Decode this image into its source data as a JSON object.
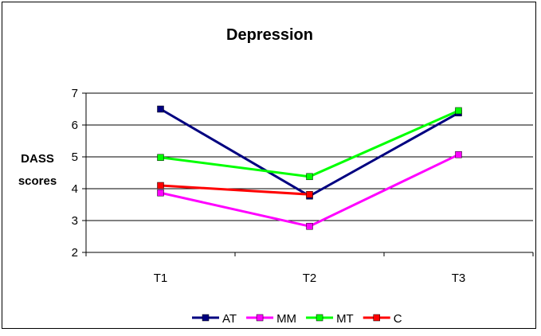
{
  "chart_data": {
    "type": "line",
    "title": "Depression",
    "ylabel_lines": [
      "DASS",
      "scores"
    ],
    "categories": [
      "T1",
      "T2",
      "T3"
    ],
    "ylim": [
      2,
      7
    ],
    "yticks": [
      2,
      3,
      4,
      5,
      6,
      7
    ],
    "grid": true,
    "legend": "bottom",
    "series": [
      {
        "name": "AT",
        "values": [
          6.5,
          3.77,
          6.38
        ],
        "color": "#000080"
      },
      {
        "name": "MM",
        "values": [
          3.87,
          2.82,
          5.07
        ],
        "color": "#FF00FF"
      },
      {
        "name": "MT",
        "values": [
          4.98,
          4.38,
          6.45
        ],
        "color": "#00FF00"
      },
      {
        "name": "C",
        "values": [
          4.1,
          3.82,
          null
        ],
        "color": "#FF0000"
      }
    ]
  }
}
